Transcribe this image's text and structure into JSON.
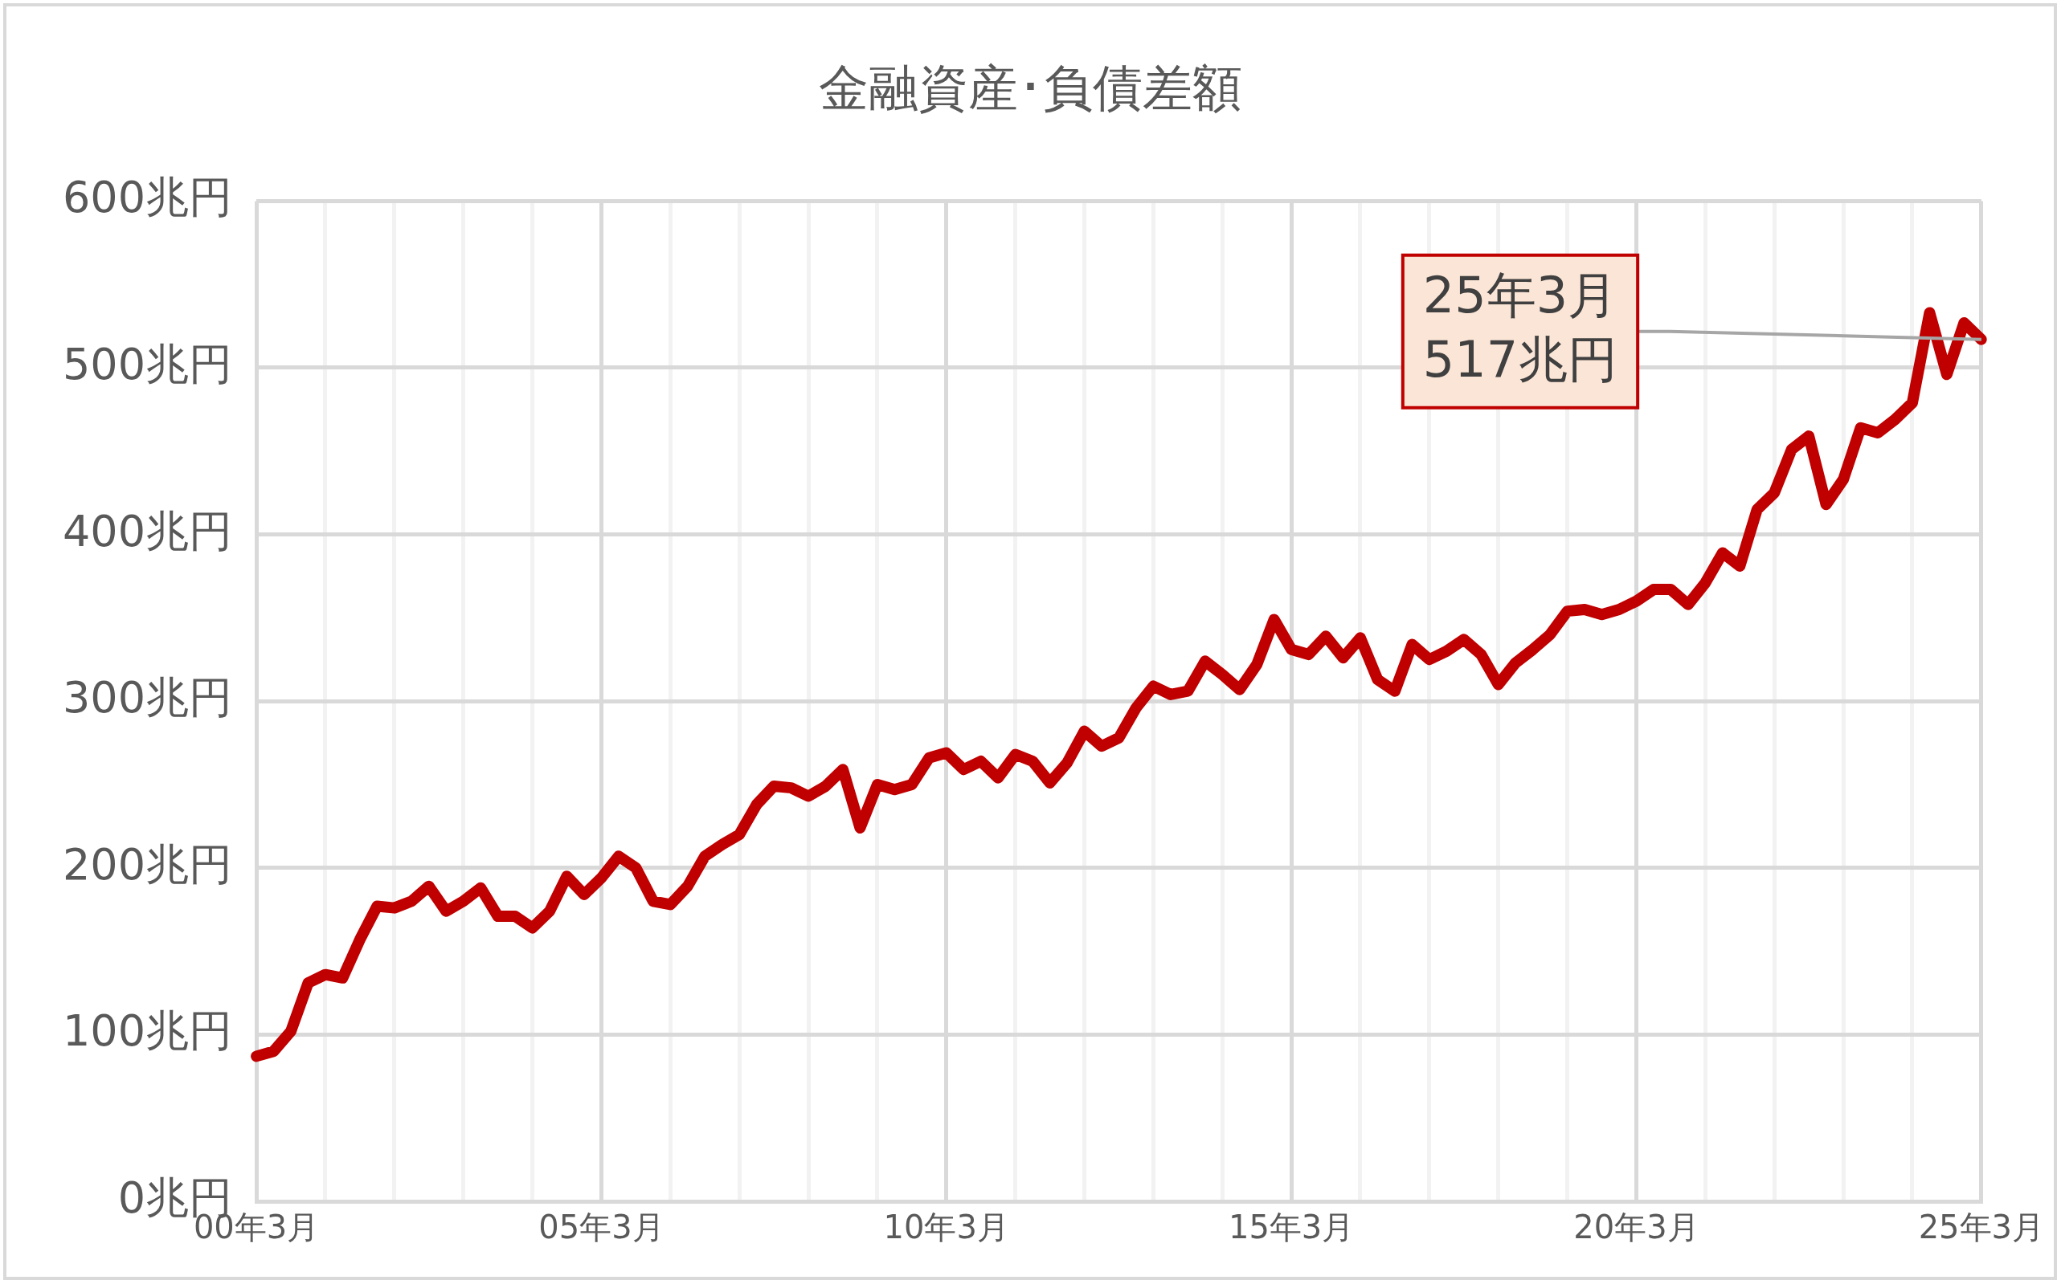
{
  "chart_data": {
    "type": "line",
    "title": "金融資産･負債差額",
    "categories": [
      "00年3月",
      null,
      null,
      null,
      null,
      null,
      null,
      null,
      null,
      null,
      null,
      null,
      null,
      null,
      null,
      null,
      null,
      null,
      null,
      null,
      "05年3月",
      null,
      null,
      null,
      null,
      null,
      null,
      null,
      null,
      null,
      null,
      null,
      null,
      null,
      null,
      null,
      null,
      null,
      null,
      null,
      "10年3月",
      null,
      null,
      null,
      null,
      null,
      null,
      null,
      null,
      null,
      null,
      null,
      null,
      null,
      null,
      null,
      null,
      null,
      null,
      null,
      "15年3月",
      null,
      null,
      null,
      null,
      null,
      null,
      null,
      null,
      null,
      null,
      null,
      null,
      null,
      null,
      null,
      null,
      null,
      null,
      null,
      "20年3月",
      null,
      null,
      null,
      null,
      null,
      null,
      null,
      null,
      null,
      null,
      null,
      null,
      null,
      null,
      null,
      null,
      null,
      null,
      null,
      "25年3月"
    ],
    "series": [
      {
        "color": "#c00000",
        "values": [
          87,
          90,
          102,
          131,
          136,
          134,
          157,
          177,
          176,
          180,
          189,
          174,
          180,
          188,
          171,
          171,
          164,
          174,
          195,
          184,
          194,
          207,
          200,
          180,
          178,
          189,
          207,
          214,
          220,
          238,
          249,
          248,
          243,
          249,
          259,
          224,
          250,
          247,
          250,
          266,
          269,
          259,
          264,
          254,
          268,
          264,
          251,
          263,
          282,
          273,
          278,
          296,
          309,
          304,
          306,
          324,
          316,
          307,
          322,
          349,
          331,
          328,
          339,
          326,
          338,
          313,
          306,
          334,
          325,
          330,
          337,
          328,
          310,
          323,
          331,
          340,
          354,
          355,
          352,
          355,
          360,
          367,
          367,
          358,
          371,
          389,
          381,
          415,
          425,
          451,
          459,
          418,
          433,
          464,
          461,
          469,
          479,
          533,
          496,
          527,
          517
        ]
      }
    ],
    "ylim": [
      0,
      600
    ],
    "yticks": [
      {
        "value": 0,
        "label": "0兆円"
      },
      {
        "value": 100,
        "label": "100兆円"
      },
      {
        "value": 200,
        "label": "200兆円"
      },
      {
        "value": 300,
        "label": "300兆円"
      },
      {
        "value": 400,
        "label": "400兆円"
      },
      {
        "value": 500,
        "label": "500兆円"
      },
      {
        "value": 600,
        "label": "600兆円"
      }
    ],
    "grid": true,
    "legend": false,
    "marker": "none",
    "line_style": "solid",
    "annotations": [
      {
        "text": "25年3月\n517兆円",
        "x": "25年3月",
        "y": 517
      }
    ]
  }
}
